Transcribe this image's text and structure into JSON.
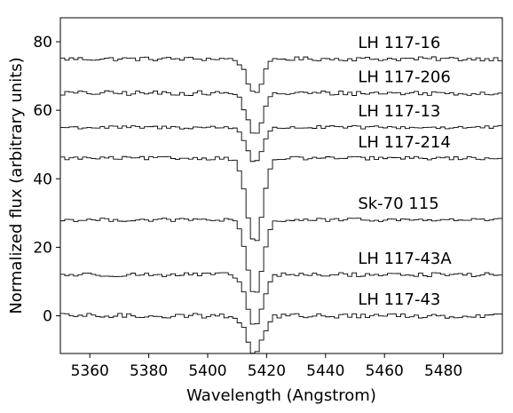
{
  "chart_data": {
    "type": "line",
    "title": "",
    "xlabel": "Wavelength (Angstrom)",
    "ylabel": "Normalized flux (arbitrary units)",
    "xlim": [
      5350,
      5500
    ],
    "ylim": [
      -11,
      87
    ],
    "x_ticks": [
      5360,
      5380,
      5400,
      5420,
      5440,
      5460,
      5480
    ],
    "y_ticks": [
      0,
      20,
      40,
      60,
      80
    ],
    "grid": false,
    "legend": "none",
    "line_color": "#000000",
    "step_angstrom": 1.5,
    "line_center": 5416,
    "series": [
      {
        "name": "LH 117-16",
        "baseline": 75,
        "min": 65,
        "noise": 0.6
      },
      {
        "name": "LH 117-206",
        "baseline": 65,
        "min": 53,
        "noise": 0.7
      },
      {
        "name": "LH 117-13",
        "baseline": 55,
        "min": 45,
        "noise": 0.5
      },
      {
        "name": "LH 117-214",
        "baseline": 46,
        "min": 21,
        "noise": 0.5
      },
      {
        "name": "Sk-70 115",
        "baseline": 28,
        "min": 6,
        "noise": 0.5
      },
      {
        "name": "LH 117-43A",
        "baseline": 12,
        "min": -3,
        "noise": 0.6
      },
      {
        "name": "LH 117-43",
        "baseline": 0,
        "min": -11,
        "noise": 0.7
      }
    ]
  }
}
